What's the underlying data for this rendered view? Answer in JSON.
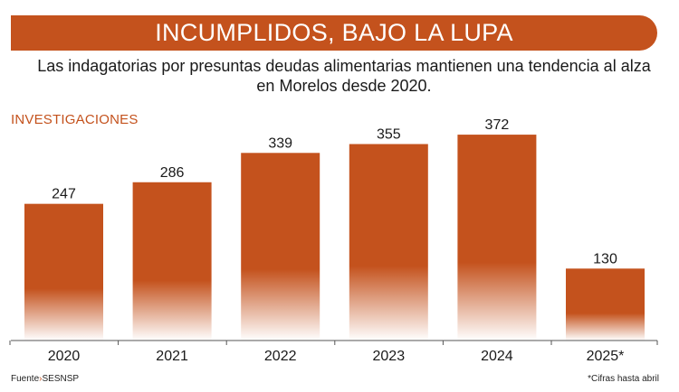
{
  "chart_data": {
    "type": "bar",
    "title": "INCUMPLIDOS, BAJO LA LUPA",
    "subtitle": "Las indagatorias por presuntas deudas alimentarias mantienen una tendencia al alza en Morelos desde 2020.",
    "ylabel": "INVESTIGACIONES",
    "xlabel": "",
    "categories": [
      "2020",
      "2021",
      "2022",
      "2023",
      "2024",
      "2025*"
    ],
    "values": [
      247,
      286,
      339,
      355,
      372,
      130
    ],
    "ylim": [
      0,
      390
    ],
    "grid": false,
    "legend": "none"
  },
  "footer": {
    "source_label": "Fuente",
    "source_sep": "›",
    "source_value": "SESNSP",
    "note": "*Cifras hasta abril"
  },
  "colors": {
    "accent": "#c4521d",
    "bar_gradient_bottom": "#ffffff",
    "axis": "#555555"
  }
}
